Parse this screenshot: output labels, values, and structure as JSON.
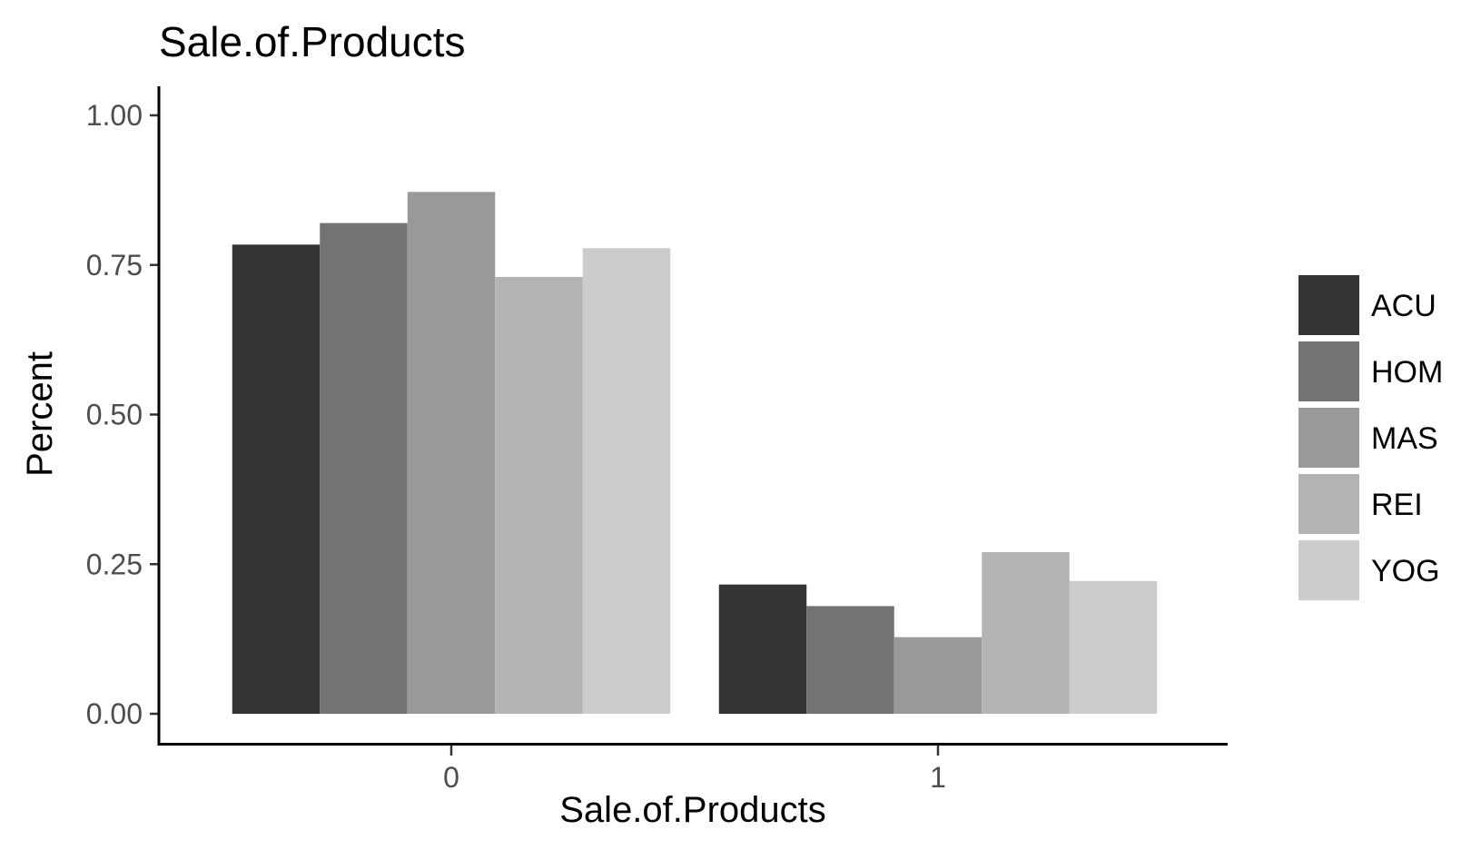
{
  "chart_data": {
    "type": "bar",
    "title": "Sale.of.Products",
    "xlabel": "Sale.of.Products",
    "ylabel": "Percent",
    "categories": [
      "0",
      "1"
    ],
    "series": [
      {
        "name": "ACU",
        "color": "#333333",
        "values": [
          0.784,
          0.216
        ]
      },
      {
        "name": "HOM",
        "color": "#737373",
        "values": [
          0.82,
          0.18
        ]
      },
      {
        "name": "MAS",
        "color": "#999999",
        "values": [
          0.872,
          0.128
        ]
      },
      {
        "name": "REI",
        "color": "#b3b3b3",
        "values": [
          0.73,
          0.27
        ]
      },
      {
        "name": "YOG",
        "color": "#cccccc",
        "values": [
          0.778,
          0.222
        ]
      }
    ],
    "ylim": [
      -0.05,
      1.05
    ],
    "yticks": [
      0,
      0.25,
      0.5,
      0.75,
      1
    ],
    "ytick_labels": [
      "0.00",
      "0.25",
      "0.50",
      "0.75",
      "1.00"
    ],
    "grid": false,
    "legend_position": "right"
  }
}
